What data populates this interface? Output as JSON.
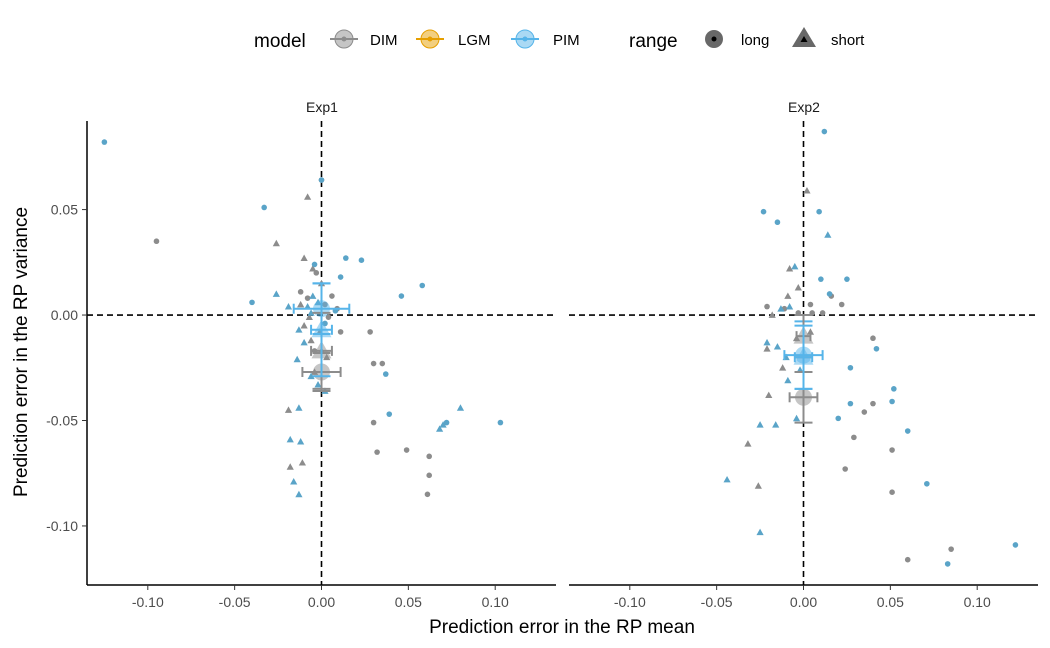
{
  "chart_data": {
    "type": "scatter",
    "xlabel": "Prediction error in the RP mean",
    "ylabel": "Prediction error in the RP variance",
    "xlim": [
      -0.135,
      0.135
    ],
    "ylim": [
      -0.128,
      0.092
    ],
    "x_ticks": [
      -0.1,
      -0.05,
      0.0,
      0.05,
      0.1
    ],
    "x_tick_labels": [
      "-0.10",
      "-0.05",
      "0.00",
      "0.05",
      "0.10"
    ],
    "y_ticks": [
      -0.1,
      -0.05,
      0.0,
      0.05
    ],
    "y_tick_labels": [
      "-0.10",
      "-0.05",
      "0.00",
      "0.05"
    ],
    "reference_lines": {
      "x": 0,
      "y": 0,
      "style": "dashed"
    },
    "grid": false,
    "legend": {
      "placement": "top",
      "model": {
        "title": "model",
        "entries": [
          "DIM",
          "LGM",
          "PIM"
        ]
      },
      "range": {
        "title": "range",
        "entries": [
          "long",
          "short"
        ]
      }
    },
    "colors": {
      "DIM": "#8c8c8c",
      "LGM": "#e69f00",
      "PIM": "#56b4e9",
      "PIM_point": "#5aa4c8"
    },
    "panels": [
      {
        "label": "Exp1",
        "points": {
          "DIM_long": [
            [
              -0.095,
              0.035
            ],
            [
              -0.012,
              0.011
            ],
            [
              -0.008,
              0.008
            ],
            [
              0.002,
              0.005
            ],
            [
              0.009,
              0.003
            ],
            [
              0.004,
              -0.001
            ],
            [
              0.011,
              -0.008
            ],
            [
              -0.004,
              -0.017
            ],
            [
              0.028,
              -0.008
            ],
            [
              0.03,
              -0.023
            ],
            [
              0.035,
              -0.023
            ],
            [
              0.03,
              -0.051
            ],
            [
              0.049,
              -0.064
            ],
            [
              0.062,
              -0.067
            ],
            [
              0.032,
              -0.065
            ],
            [
              0.062,
              -0.076
            ],
            [
              0.061,
              -0.085
            ],
            [
              0.0,
              0.064
            ],
            [
              0.006,
              0.009
            ],
            [
              -0.003,
              0.02
            ]
          ],
          "PIM_long": [
            [
              -0.125,
              0.082
            ],
            [
              -0.033,
              0.051
            ],
            [
              -0.04,
              0.006
            ],
            [
              -0.004,
              0.024
            ],
            [
              0.0,
              0.064
            ],
            [
              0.014,
              0.027
            ],
            [
              0.023,
              0.026
            ],
            [
              0.011,
              0.018
            ],
            [
              0.058,
              0.014
            ],
            [
              0.046,
              0.009
            ],
            [
              0.037,
              -0.028
            ],
            [
              0.039,
              -0.047
            ],
            [
              0.072,
              -0.051
            ],
            [
              0.103,
              -0.051
            ],
            [
              0.008,
              0.002
            ],
            [
              0.002,
              -0.004
            ]
          ],
          "DIM_short": [
            [
              -0.008,
              0.056
            ],
            [
              -0.026,
              0.034
            ],
            [
              -0.01,
              0.027
            ],
            [
              -0.005,
              0.022
            ],
            [
              0.0,
              0.015
            ],
            [
              -0.012,
              0.005
            ],
            [
              -0.007,
              -0.001
            ],
            [
              -0.01,
              -0.005
            ],
            [
              -0.006,
              -0.012
            ],
            [
              0.0,
              -0.017
            ],
            [
              0.003,
              -0.02
            ],
            [
              -0.004,
              -0.027
            ],
            [
              -0.019,
              -0.045
            ],
            [
              -0.018,
              -0.072
            ],
            [
              -0.011,
              -0.07
            ],
            [
              -0.001,
              -0.008
            ]
          ],
          "PIM_short": [
            [
              -0.026,
              0.01
            ],
            [
              -0.019,
              0.004
            ],
            [
              -0.008,
              0.004
            ],
            [
              -0.005,
              0.009
            ],
            [
              -0.002,
              0.006
            ],
            [
              -0.006,
              0.001
            ],
            [
              -0.013,
              -0.007
            ],
            [
              -0.01,
              -0.013
            ],
            [
              -0.014,
              -0.021
            ],
            [
              -0.006,
              -0.029
            ],
            [
              -0.002,
              -0.033
            ],
            [
              0.002,
              -0.036
            ],
            [
              -0.013,
              -0.044
            ],
            [
              -0.018,
              -0.059
            ],
            [
              -0.012,
              -0.06
            ],
            [
              -0.016,
              -0.079
            ],
            [
              -0.013,
              -0.085
            ],
            [
              0.07,
              -0.052
            ],
            [
              0.08,
              -0.044
            ],
            [
              0.068,
              -0.054
            ]
          ]
        },
        "means": [
          {
            "model": "DIM",
            "range": "long",
            "x": 0.0,
            "y": -0.027,
            "xerr": 0.011,
            "yerr": 0.009
          },
          {
            "model": "PIM",
            "range": "long",
            "x": 0.0,
            "y": 0.003,
            "xerr": 0.016,
            "yerr": 0.012
          },
          {
            "model": "DIM",
            "range": "short",
            "x": 0.0,
            "y": -0.017,
            "xerr": 0.006,
            "yerr": 0.018
          },
          {
            "model": "PIM",
            "range": "short",
            "x": 0.0,
            "y": -0.007,
            "xerr": 0.006,
            "yerr": 0.022
          }
        ]
      },
      {
        "label": "Exp2",
        "points": {
          "DIM_long": [
            [
              -0.021,
              0.004
            ],
            [
              -0.011,
              0.003
            ],
            [
              -0.003,
              0.001
            ],
            [
              0.004,
              0.005
            ],
            [
              0.011,
              0.001
            ],
            [
              0.016,
              0.009
            ],
            [
              0.022,
              0.005
            ],
            [
              0.04,
              -0.011
            ],
            [
              0.035,
              -0.046
            ],
            [
              0.04,
              -0.042
            ],
            [
              0.029,
              -0.058
            ],
            [
              0.024,
              -0.073
            ],
            [
              0.051,
              -0.064
            ],
            [
              0.051,
              -0.084
            ],
            [
              0.06,
              -0.116
            ],
            [
              0.085,
              -0.111
            ],
            [
              0.005,
              0.001
            ]
          ],
          "PIM_long": [
            [
              -0.023,
              0.049
            ],
            [
              -0.015,
              0.044
            ],
            [
              0.012,
              0.087
            ],
            [
              0.009,
              0.049
            ],
            [
              0.01,
              0.017
            ],
            [
              0.025,
              0.017
            ],
            [
              0.042,
              -0.016
            ],
            [
              0.027,
              -0.025
            ],
            [
              0.027,
              -0.042
            ],
            [
              0.02,
              -0.049
            ],
            [
              0.052,
              -0.035
            ],
            [
              0.051,
              -0.041
            ],
            [
              0.06,
              -0.055
            ],
            [
              0.071,
              -0.08
            ],
            [
              0.083,
              -0.118
            ],
            [
              0.122,
              -0.109
            ],
            [
              0.015,
              0.01
            ]
          ],
          "DIM_short": [
            [
              0.002,
              0.059
            ],
            [
              -0.008,
              0.022
            ],
            [
              -0.009,
              0.009
            ],
            [
              -0.003,
              0.013
            ],
            [
              -0.018,
              0.0
            ],
            [
              -0.021,
              -0.016
            ],
            [
              -0.012,
              -0.025
            ],
            [
              -0.02,
              -0.038
            ],
            [
              -0.032,
              -0.061
            ],
            [
              -0.026,
              -0.081
            ],
            [
              -0.004,
              -0.011
            ],
            [
              0.004,
              -0.008
            ]
          ],
          "PIM_short": [
            [
              -0.005,
              0.023
            ],
            [
              0.014,
              0.038
            ],
            [
              -0.013,
              0.003
            ],
            [
              -0.008,
              0.004
            ],
            [
              -0.021,
              -0.013
            ],
            [
              -0.015,
              -0.015
            ],
            [
              -0.01,
              -0.02
            ],
            [
              -0.025,
              -0.052
            ],
            [
              -0.016,
              -0.052
            ],
            [
              -0.004,
              -0.049
            ],
            [
              -0.044,
              -0.078
            ],
            [
              -0.025,
              -0.103
            ],
            [
              -0.009,
              -0.031
            ],
            [
              -0.002,
              -0.026
            ]
          ]
        },
        "means": [
          {
            "model": "DIM",
            "range": "long",
            "x": 0.0,
            "y": -0.039,
            "xerr": 0.008,
            "yerr": 0.012
          },
          {
            "model": "PIM",
            "range": "long",
            "x": 0.0,
            "y": -0.019,
            "xerr": 0.011,
            "yerr": 0.016
          },
          {
            "model": "DIM",
            "range": "short",
            "x": 0.0,
            "y": -0.01,
            "xerr": 0.004,
            "yerr": 0.01
          },
          {
            "model": "PIM",
            "range": "short",
            "x": 0.0,
            "y": -0.02,
            "xerr": 0.005,
            "yerr": 0.015
          }
        ]
      }
    ]
  }
}
